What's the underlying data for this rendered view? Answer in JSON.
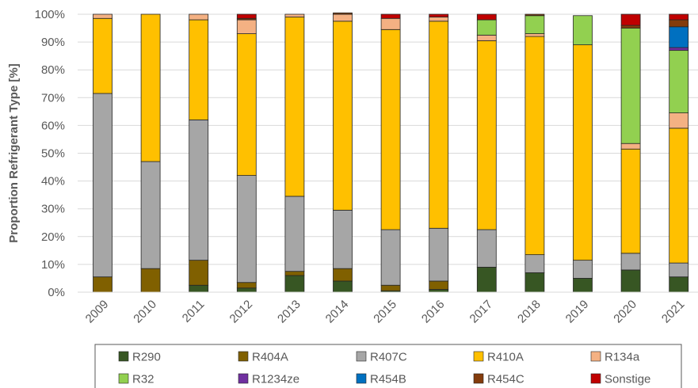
{
  "chart_data": {
    "type": "bar",
    "stacked": true,
    "percent_stacked": true,
    "title": "",
    "xlabel": "",
    "ylabel": "Proportion Refrigerant Type [%]",
    "ylim": [
      0,
      100
    ],
    "yticks": [
      "0%",
      "10%",
      "20%",
      "30%",
      "40%",
      "50%",
      "60%",
      "70%",
      "80%",
      "90%",
      "100%"
    ],
    "grid": "horizontal",
    "legend_position": "bottom",
    "categories": [
      "2009",
      "2010",
      "2011",
      "2012",
      "2013",
      "2014",
      "2015",
      "2016",
      "2017",
      "2018",
      "2019",
      "2020",
      "2021"
    ],
    "series": [
      {
        "name": "R290",
        "color": "#375623",
        "values": [
          0,
          0,
          2.5,
          1.5,
          6,
          4,
          0.5,
          1,
          9,
          7,
          5,
          8,
          5.5
        ]
      },
      {
        "name": "R404A",
        "color": "#806000",
        "values": [
          5.5,
          8.5,
          9,
          2,
          1.5,
          4.5,
          2,
          3,
          0,
          0,
          0,
          0,
          0
        ]
      },
      {
        "name": "R407C",
        "color": "#A6A6A6",
        "values": [
          66,
          38.5,
          50.5,
          38.5,
          27,
          21,
          20,
          19,
          13.5,
          6.5,
          6.5,
          6,
          5
        ]
      },
      {
        "name": "R410A",
        "color": "#FFC000",
        "values": [
          27,
          53,
          36,
          51,
          64.5,
          68,
          72,
          74.5,
          68,
          78.5,
          77.5,
          37.5,
          48.5
        ]
      },
      {
        "name": "R134a",
        "color": "#F4B183",
        "values": [
          1.5,
          0,
          2,
          5,
          1,
          2.5,
          4,
          1.5,
          2,
          1,
          0,
          2,
          5.5
        ]
      },
      {
        "name": "R32",
        "color": "#92D050",
        "values": [
          0,
          0,
          0,
          0,
          0,
          0,
          0,
          0,
          5.5,
          6.5,
          10.5,
          41.5,
          22.5
        ]
      },
      {
        "name": "R1234ze",
        "color": "#7030A0",
        "values": [
          0,
          0,
          0,
          0,
          0,
          0,
          0,
          0,
          0,
          0,
          0,
          0,
          1
        ]
      },
      {
        "name": "R454B",
        "color": "#0070C0",
        "values": [
          0,
          0,
          0,
          0,
          0,
          0,
          0,
          0,
          0,
          0,
          0,
          0,
          7.5
        ]
      },
      {
        "name": "R454C",
        "color": "#843C0C",
        "values": [
          0,
          0,
          0,
          0.5,
          0,
          0.5,
          0,
          0,
          0,
          0.5,
          0,
          1,
          2.5
        ]
      },
      {
        "name": "Sonstige",
        "color": "#C00000",
        "values": [
          0,
          0,
          0,
          1.5,
          0,
          0,
          1.5,
          1,
          2,
          0,
          0,
          4,
          2
        ]
      }
    ]
  }
}
